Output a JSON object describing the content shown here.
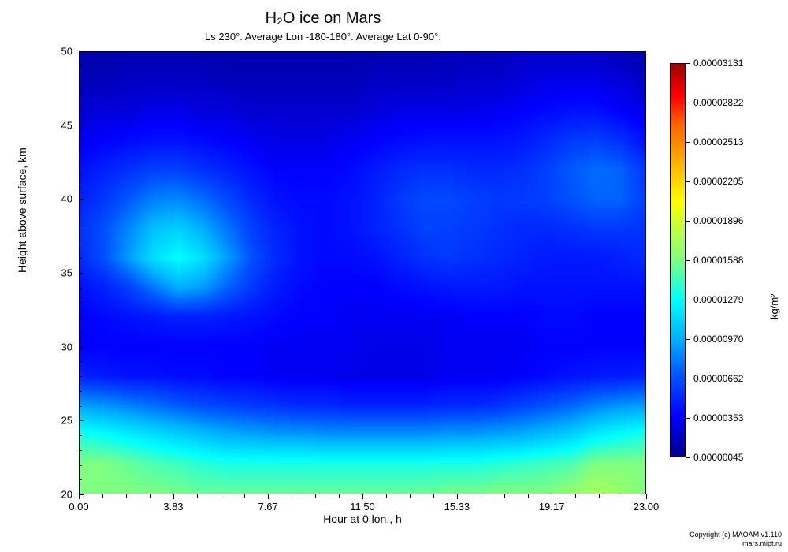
{
  "chart": {
    "type": "heatmap",
    "title": "H₂O ice on Mars",
    "subtitle": "Ls 230°. Average Lon -180-180°. Average Lat 0-90°.",
    "xlabel": "Hour at 0 lon.,  h",
    "ylabel": "Height above surface,  km",
    "cblabel": "kg/m²",
    "xlim": [
      0,
      23
    ],
    "ylim": [
      20,
      50
    ],
    "xticks": [
      0.0,
      3.83,
      7.67,
      11.5,
      15.33,
      19.17,
      23.0
    ],
    "xtick_labels": [
      "0.00",
      "3.83",
      "7.67",
      "11.50",
      "15.33",
      "19.17",
      "23.00"
    ],
    "yticks": [
      20,
      25,
      30,
      35,
      40,
      45,
      50
    ],
    "ytick_labels": [
      "20",
      "25",
      "30",
      "35",
      "40",
      "45",
      "50"
    ],
    "title_fontsize": 20,
    "subtitle_fontsize": 13,
    "label_fontsize": 14,
    "tick_fontsize": 13,
    "background_color": "#ffffff",
    "colorbar": {
      "min": 4.5e-07,
      "max": 3.131e-05,
      "ticks": [
        4.5e-07,
        3.53e-06,
        6.62e-06,
        9.7e-06,
        1.279e-05,
        1.588e-05,
        1.896e-05,
        2.205e-05,
        2.513e-05,
        2.822e-05,
        3.131e-05
      ],
      "tick_labels": [
        "0.00000045",
        "0.00000353",
        "0.00000662",
        "0.00000970",
        "0.00001279",
        "0.00001588",
        "0.00001896",
        "0.00002205",
        "0.00002513",
        "0.00002822",
        "0.00003131"
      ],
      "stops": [
        {
          "t": 0.0,
          "color": "#00008b"
        },
        {
          "t": 0.1,
          "color": "#0000ff"
        },
        {
          "t": 0.2,
          "color": "#0050ff"
        },
        {
          "t": 0.3,
          "color": "#00b0ff"
        },
        {
          "t": 0.4,
          "color": "#00ffff"
        },
        {
          "t": 0.5,
          "color": "#80ff80"
        },
        {
          "t": 0.58,
          "color": "#c0ff40"
        },
        {
          "t": 0.65,
          "color": "#ffff00"
        },
        {
          "t": 0.75,
          "color": "#ffb000"
        },
        {
          "t": 0.85,
          "color": "#ff6000"
        },
        {
          "t": 0.92,
          "color": "#ff0000"
        },
        {
          "t": 1.0,
          "color": "#a00000"
        }
      ]
    },
    "data": {
      "nx": 24,
      "ny": 16,
      "values": [
        [
          0.5,
          0.5,
          0.5,
          0.5,
          0.49,
          0.48,
          0.48,
          0.48,
          0.48,
          0.48,
          0.48,
          0.48,
          0.48,
          0.48,
          0.48,
          0.49,
          0.49,
          0.5,
          0.5,
          0.5,
          0.52,
          0.55,
          0.53,
          0.5
        ],
        [
          0.5,
          0.5,
          0.48,
          0.46,
          0.45,
          0.43,
          0.42,
          0.42,
          0.42,
          0.42,
          0.42,
          0.42,
          0.42,
          0.42,
          0.42,
          0.42,
          0.42,
          0.43,
          0.44,
          0.45,
          0.46,
          0.5,
          0.5,
          0.5
        ],
        [
          0.42,
          0.4,
          0.38,
          0.36,
          0.34,
          0.32,
          0.3,
          0.29,
          0.28,
          0.28,
          0.27,
          0.27,
          0.27,
          0.27,
          0.27,
          0.28,
          0.28,
          0.29,
          0.3,
          0.32,
          0.34,
          0.38,
          0.4,
          0.42
        ],
        [
          0.28,
          0.27,
          0.25,
          0.23,
          0.21,
          0.19,
          0.18,
          0.17,
          0.16,
          0.15,
          0.15,
          0.14,
          0.14,
          0.14,
          0.14,
          0.15,
          0.15,
          0.16,
          0.18,
          0.2,
          0.22,
          0.25,
          0.27,
          0.28
        ],
        [
          0.14,
          0.13,
          0.12,
          0.12,
          0.11,
          0.11,
          0.1,
          0.1,
          0.09,
          0.09,
          0.09,
          0.08,
          0.08,
          0.08,
          0.08,
          0.09,
          0.09,
          0.09,
          0.1,
          0.11,
          0.12,
          0.13,
          0.13,
          0.14
        ],
        [
          0.1,
          0.1,
          0.1,
          0.1,
          0.1,
          0.1,
          0.1,
          0.1,
          0.09,
          0.09,
          0.09,
          0.09,
          0.08,
          0.08,
          0.08,
          0.09,
          0.09,
          0.09,
          0.09,
          0.1,
          0.1,
          0.1,
          0.1,
          0.1
        ],
        [
          0.1,
          0.11,
          0.12,
          0.13,
          0.14,
          0.14,
          0.13,
          0.12,
          0.11,
          0.1,
          0.1,
          0.09,
          0.09,
          0.09,
          0.09,
          0.09,
          0.1,
          0.1,
          0.1,
          0.11,
          0.11,
          0.1,
          0.1,
          0.1
        ],
        [
          0.12,
          0.14,
          0.18,
          0.24,
          0.3,
          0.28,
          0.22,
          0.17,
          0.13,
          0.11,
          0.1,
          0.1,
          0.1,
          0.11,
          0.12,
          0.13,
          0.13,
          0.13,
          0.12,
          0.12,
          0.12,
          0.12,
          0.12,
          0.12
        ],
        [
          0.15,
          0.2,
          0.28,
          0.36,
          0.4,
          0.36,
          0.28,
          0.2,
          0.15,
          0.12,
          0.11,
          0.11,
          0.12,
          0.14,
          0.16,
          0.17,
          0.16,
          0.15,
          0.14,
          0.13,
          0.13,
          0.13,
          0.14,
          0.15
        ],
        [
          0.16,
          0.2,
          0.26,
          0.32,
          0.34,
          0.3,
          0.24,
          0.18,
          0.14,
          0.12,
          0.11,
          0.12,
          0.14,
          0.16,
          0.18,
          0.18,
          0.17,
          0.16,
          0.15,
          0.15,
          0.16,
          0.17,
          0.17,
          0.16
        ],
        [
          0.14,
          0.17,
          0.21,
          0.25,
          0.26,
          0.23,
          0.19,
          0.15,
          0.12,
          0.11,
          0.11,
          0.12,
          0.14,
          0.17,
          0.19,
          0.19,
          0.18,
          0.17,
          0.17,
          0.18,
          0.2,
          0.22,
          0.22,
          0.18
        ],
        [
          0.12,
          0.14,
          0.16,
          0.18,
          0.18,
          0.16,
          0.14,
          0.12,
          0.1,
          0.1,
          0.1,
          0.11,
          0.13,
          0.15,
          0.16,
          0.16,
          0.15,
          0.15,
          0.16,
          0.18,
          0.21,
          0.23,
          0.22,
          0.17
        ],
        [
          0.09,
          0.1,
          0.11,
          0.12,
          0.12,
          0.11,
          0.1,
          0.09,
          0.08,
          0.08,
          0.08,
          0.09,
          0.1,
          0.11,
          0.12,
          0.12,
          0.12,
          0.12,
          0.13,
          0.15,
          0.17,
          0.18,
          0.16,
          0.12
        ],
        [
          0.06,
          0.07,
          0.07,
          0.08,
          0.08,
          0.07,
          0.07,
          0.06,
          0.06,
          0.06,
          0.06,
          0.06,
          0.07,
          0.08,
          0.08,
          0.08,
          0.08,
          0.09,
          0.1,
          0.11,
          0.12,
          0.12,
          0.1,
          0.08
        ],
        [
          0.04,
          0.04,
          0.05,
          0.05,
          0.05,
          0.05,
          0.04,
          0.04,
          0.04,
          0.04,
          0.04,
          0.04,
          0.05,
          0.05,
          0.05,
          0.05,
          0.06,
          0.06,
          0.07,
          0.08,
          0.08,
          0.08,
          0.07,
          0.05
        ],
        [
          0.03,
          0.03,
          0.03,
          0.03,
          0.03,
          0.03,
          0.03,
          0.03,
          0.03,
          0.03,
          0.03,
          0.03,
          0.03,
          0.03,
          0.03,
          0.04,
          0.04,
          0.04,
          0.05,
          0.05,
          0.05,
          0.05,
          0.04,
          0.03
        ]
      ]
    }
  },
  "copyright": {
    "line1": "Copyright (c) MAOAM v1.110",
    "line2": "mars.mipt.ru"
  }
}
